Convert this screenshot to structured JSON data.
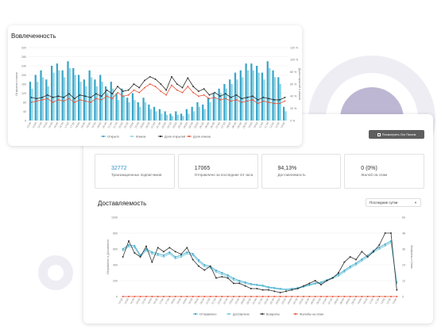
{
  "engagement": {
    "title": "Вовлеченность",
    "chart_data": {
      "type": "bar",
      "title": "Вовлеченность",
      "ylabel_left": "Открытия и клики",
      "ylabel_right": "Доля открытий и кликов",
      "ylim_left": [
        0,
        320
      ],
      "ylim_right": [
        0,
        120
      ],
      "left_ticks": [
        "320",
        "280",
        "240",
        "200",
        "160",
        "120",
        "80",
        "40",
        "0"
      ],
      "right_ticks": [
        "120 %",
        "100 %",
        "80 %",
        "60 %",
        "40 %",
        "20 %",
        "0 %"
      ],
      "categories": [
        "13:30",
        "14:00",
        "14:30",
        "15:00",
        "15:30",
        "16:00",
        "16:30",
        "17:00",
        "17:30",
        "18:00",
        "18:30",
        "19:00",
        "19:30",
        "20:00",
        "20:30",
        "21:00",
        "21:30",
        "22:00",
        "22:30",
        "23:00",
        "23:30",
        "00:00",
        "00:30",
        "01:00",
        "01:30",
        "02:00",
        "02:30",
        "03:00",
        "03:30",
        "04:00",
        "04:30",
        "05:00",
        "05:30",
        "06:00",
        "06:30",
        "07:00",
        "07:30",
        "08:00",
        "08:30",
        "09:00",
        "09:30",
        "10:00",
        "10:30",
        "11:00",
        "11:30",
        "12:00",
        "12:30",
        "13:00"
      ],
      "series": [
        {
          "name": "Открыто",
          "type": "bar",
          "axis": "left",
          "values": [
            170,
            200,
            220,
            180,
            240,
            250,
            220,
            260,
            230,
            200,
            180,
            220,
            180,
            200,
            150,
            170,
            120,
            140,
            100,
            120,
            80,
            100,
            70,
            60,
            50,
            40,
            30,
            40,
            30,
            50,
            60,
            80,
            70,
            100,
            120,
            140,
            160,
            180,
            210,
            220,
            250,
            250,
            240,
            210,
            260,
            220,
            190,
            60
          ]
        },
        {
          "name": "Кликов",
          "type": "bar",
          "axis": "left",
          "values": [
            140,
            170,
            190,
            150,
            210,
            220,
            190,
            230,
            200,
            170,
            150,
            190,
            150,
            170,
            120,
            140,
            90,
            110,
            80,
            90,
            60,
            80,
            50,
            40,
            30,
            25,
            20,
            25,
            20,
            30,
            40,
            60,
            50,
            80,
            100,
            120,
            140,
            160,
            180,
            190,
            220,
            220,
            210,
            180,
            230,
            190,
            160,
            40
          ]
        },
        {
          "name": "Доля открытий",
          "type": "line",
          "axis": "right",
          "values": [
            38,
            36,
            38,
            42,
            38,
            40,
            38,
            44,
            36,
            42,
            40,
            38,
            44,
            40,
            50,
            44,
            56,
            48,
            50,
            60,
            54,
            66,
            72,
            68,
            60,
            50,
            72,
            60,
            54,
            70,
            56,
            48,
            52,
            42,
            46,
            40,
            44,
            38,
            42,
            36,
            38,
            40,
            34,
            38,
            36,
            34,
            34,
            38
          ]
        },
        {
          "name": "Доля кликов",
          "type": "line",
          "axis": "right",
          "values": [
            30,
            32,
            34,
            36,
            30,
            34,
            32,
            36,
            30,
            34,
            32,
            30,
            36,
            34,
            40,
            36,
            46,
            40,
            42,
            50,
            46,
            54,
            60,
            56,
            48,
            42,
            58,
            50,
            46,
            56,
            46,
            40,
            42,
            36,
            38,
            34,
            36,
            32,
            34,
            30,
            32,
            34,
            28,
            32,
            30,
            28,
            28,
            32
          ]
        }
      ],
      "legend": [
        "Открыто",
        "Кликов",
        "Доля открытий",
        "Доля кликов"
      ],
      "legend_position": "bottom",
      "colors": {
        "Открыто": "#3aa5c8",
        "Кликов": "#8fd6e6",
        "Доля открытий": "#2b2b2b",
        "Доля кликов": "#e8553a"
      }
    }
  },
  "delivery": {
    "title": "Доставляемость",
    "logs_button_label": "Посмотреть Лог Писем",
    "period_select": {
      "value": "Последние сутки"
    },
    "stats": [
      {
        "value": "32772",
        "label": "Транзакционных подписчиков"
      },
      {
        "value": "17065",
        "label": "Отправлено за последние 24 часа"
      },
      {
        "value": "94,13%",
        "label": "Доставляемость"
      },
      {
        "value": "0 (0%)",
        "label": "Жалоб на спам"
      }
    ],
    "chart_data": {
      "type": "line",
      "title": "Доставляемость",
      "ylabel_left": "Отправлено и Доставлено",
      "ylabel_right": "Возвраты и Спам",
      "ylim_left": [
        0,
        1000
      ],
      "ylim_right": [
        0,
        60
      ],
      "left_ticks": [
        "1000",
        "800",
        "600",
        "400",
        "200",
        "0"
      ],
      "right_ticks": [
        "60",
        "48",
        "36",
        "24",
        "12",
        "0"
      ],
      "categories": [
        "13:30",
        "14:00",
        "14:30",
        "15:00",
        "15:30",
        "16:00",
        "16:30",
        "17:00",
        "17:30",
        "18:00",
        "18:30",
        "19:00",
        "19:30",
        "20:00",
        "20:30",
        "21:00",
        "21:30",
        "22:00",
        "22:30",
        "23:00",
        "23:30",
        "00:00",
        "00:30",
        "01:00",
        "01:30",
        "02:00",
        "02:30",
        "03:00",
        "03:30",
        "04:00",
        "04:30",
        "05:00",
        "05:30",
        "06:00",
        "06:30",
        "07:00",
        "07:30",
        "08:00",
        "08:30",
        "09:00",
        "09:30",
        "10:00",
        "10:30",
        "11:00",
        "11:30",
        "12:00",
        "12:30",
        "13:00"
      ],
      "series": [
        {
          "name": "Отправлено",
          "axis": "left",
          "values": [
            600,
            650,
            640,
            520,
            600,
            560,
            540,
            520,
            560,
            500,
            520,
            560,
            540,
            460,
            400,
            380,
            330,
            300,
            270,
            230,
            200,
            180,
            160,
            150,
            140,
            120,
            110,
            100,
            90,
            100,
            110,
            130,
            150,
            170,
            180,
            210,
            240,
            280,
            330,
            380,
            420,
            470,
            520,
            580,
            620,
            660,
            700,
            180
          ]
        },
        {
          "name": "Доставлено",
          "axis": "left",
          "values": [
            580,
            630,
            620,
            500,
            580,
            540,
            520,
            500,
            540,
            480,
            500,
            540,
            520,
            440,
            380,
            360,
            310,
            280,
            250,
            210,
            185,
            165,
            150,
            140,
            130,
            110,
            100,
            92,
            85,
            92,
            100,
            120,
            140,
            160,
            170,
            200,
            230,
            260,
            310,
            360,
            400,
            450,
            500,
            560,
            600,
            640,
            680,
            170
          ]
        },
        {
          "name": "Возвраты",
          "axis": "right",
          "values": [
            30,
            42,
            33,
            30,
            38,
            26,
            37,
            34,
            37,
            34,
            32,
            37,
            28,
            23,
            20,
            23,
            14,
            15,
            14,
            10,
            10,
            8,
            6,
            6,
            5,
            5,
            4,
            3,
            4,
            5,
            6,
            8,
            10,
            12,
            9,
            12,
            14,
            18,
            26,
            30,
            28,
            34,
            30,
            34,
            39,
            48,
            48,
            5
          ]
        },
        {
          "name": "Жалобы на спам",
          "axis": "right",
          "values": [
            0,
            0,
            0,
            0,
            0,
            0,
            0,
            0,
            0,
            0,
            0,
            0,
            0,
            0,
            0,
            0,
            0,
            0,
            0,
            0,
            0,
            0,
            0,
            0,
            0,
            0,
            0,
            0,
            0,
            0,
            0,
            0,
            0,
            0,
            0,
            0,
            0,
            0,
            0,
            0,
            0,
            0,
            0,
            0,
            0,
            0,
            0,
            0
          ]
        }
      ],
      "legend": [
        "Отправлено",
        "Доставлено",
        "Возвраты",
        "Жалобы на спам"
      ],
      "legend_position": "bottom",
      "colors": {
        "Отправлено": "#3aa5c8",
        "Доставлено": "#6ec6d8",
        "Возвраты": "#333333",
        "Жалобы на спам": "#e8553a"
      }
    }
  }
}
